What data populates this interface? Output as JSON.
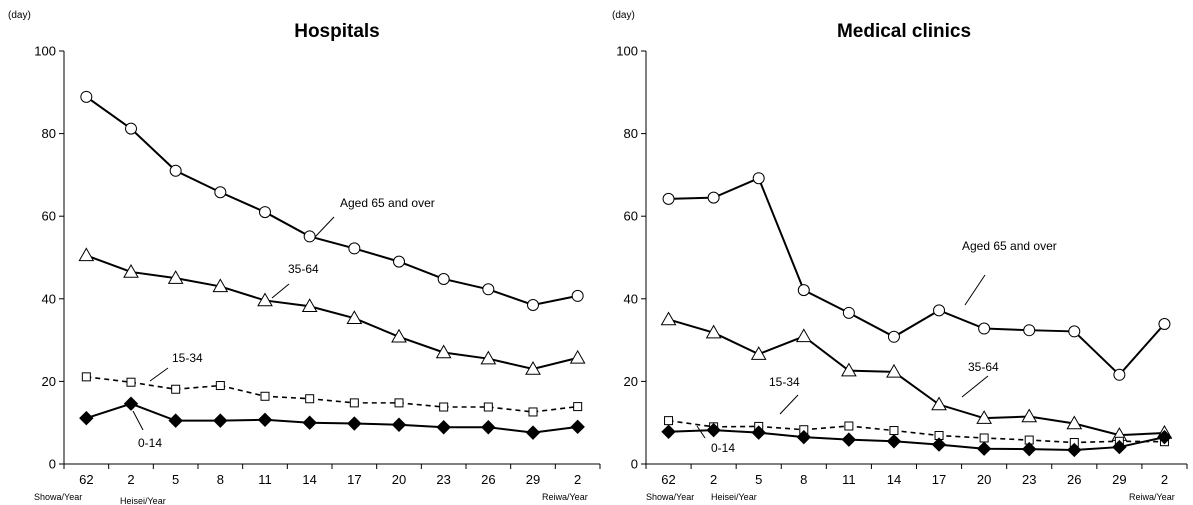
{
  "chart_data": [
    {
      "type": "line",
      "title": "Hospitals",
      "unit": "(day)",
      "categories": [
        "62",
        "2",
        "5",
        "8",
        "11",
        "14",
        "17",
        "20",
        "23",
        "26",
        "29",
        "2"
      ],
      "era_labels": [
        "Showa/Year",
        "Heisei/Year",
        "Reiwa/Year"
      ],
      "ylim": [
        0,
        100
      ],
      "yticks": [
        0,
        20,
        40,
        60,
        80,
        100
      ],
      "grid": false,
      "series": [
        {
          "name": "Aged 65 and over",
          "marker": "circle",
          "dash": false,
          "values": [
            88.9,
            81.2,
            71.0,
            65.8,
            61.0,
            55.1,
            52.2,
            49.0,
            44.8,
            42.3,
            38.5,
            40.7
          ]
        },
        {
          "name": "35-64",
          "marker": "triangle",
          "dash": false,
          "values": [
            50.5,
            46.5,
            45.0,
            43.0,
            39.6,
            38.2,
            35.3,
            30.8,
            27.0,
            25.5,
            23.0,
            25.7
          ]
        },
        {
          "name": "15-34",
          "marker": "square",
          "dash": true,
          "values": [
            21.1,
            19.8,
            18.1,
            19.0,
            16.4,
            15.8,
            14.8,
            14.8,
            13.8,
            13.8,
            12.6,
            13.9
          ]
        },
        {
          "name": "0-14",
          "marker": "diamond",
          "dash": false,
          "values": [
            11.1,
            14.6,
            10.5,
            10.5,
            10.7,
            10.0,
            9.8,
            9.5,
            8.9,
            8.9,
            7.6,
            9.0
          ]
        }
      ]
    },
    {
      "type": "line",
      "title": "Medical clinics",
      "unit": "(day)",
      "categories": [
        "62",
        "2",
        "5",
        "8",
        "11",
        "14",
        "17",
        "20",
        "23",
        "26",
        "29",
        "2"
      ],
      "era_labels": [
        "Showa/Year",
        "Heisei/Year",
        "Reiwa/Year"
      ],
      "ylim": [
        0,
        100
      ],
      "yticks": [
        0,
        20,
        40,
        60,
        80,
        100
      ],
      "grid": false,
      "series": [
        {
          "name": "Aged 65 and over",
          "marker": "circle",
          "dash": false,
          "values": [
            64.2,
            64.5,
            69.2,
            42.1,
            36.6,
            30.8,
            37.2,
            32.8,
            32.4,
            32.1,
            21.6,
            33.9
          ]
        },
        {
          "name": "35-64",
          "marker": "triangle",
          "dash": false,
          "values": [
            35.0,
            31.8,
            26.6,
            30.9,
            22.6,
            22.3,
            14.4,
            11.1,
            11.5,
            9.8,
            7.0,
            7.5
          ]
        },
        {
          "name": "15-34",
          "marker": "square",
          "dash": true,
          "values": [
            10.5,
            9.0,
            9.1,
            8.3,
            9.2,
            8.1,
            6.9,
            6.3,
            5.8,
            5.2,
            5.5,
            5.4
          ]
        },
        {
          "name": "0-14",
          "marker": "diamond",
          "dash": false,
          "values": [
            7.8,
            8.2,
            7.6,
            6.5,
            5.9,
            5.5,
            4.7,
            3.7,
            3.6,
            3.4,
            4.1,
            6.5
          ]
        }
      ]
    }
  ]
}
